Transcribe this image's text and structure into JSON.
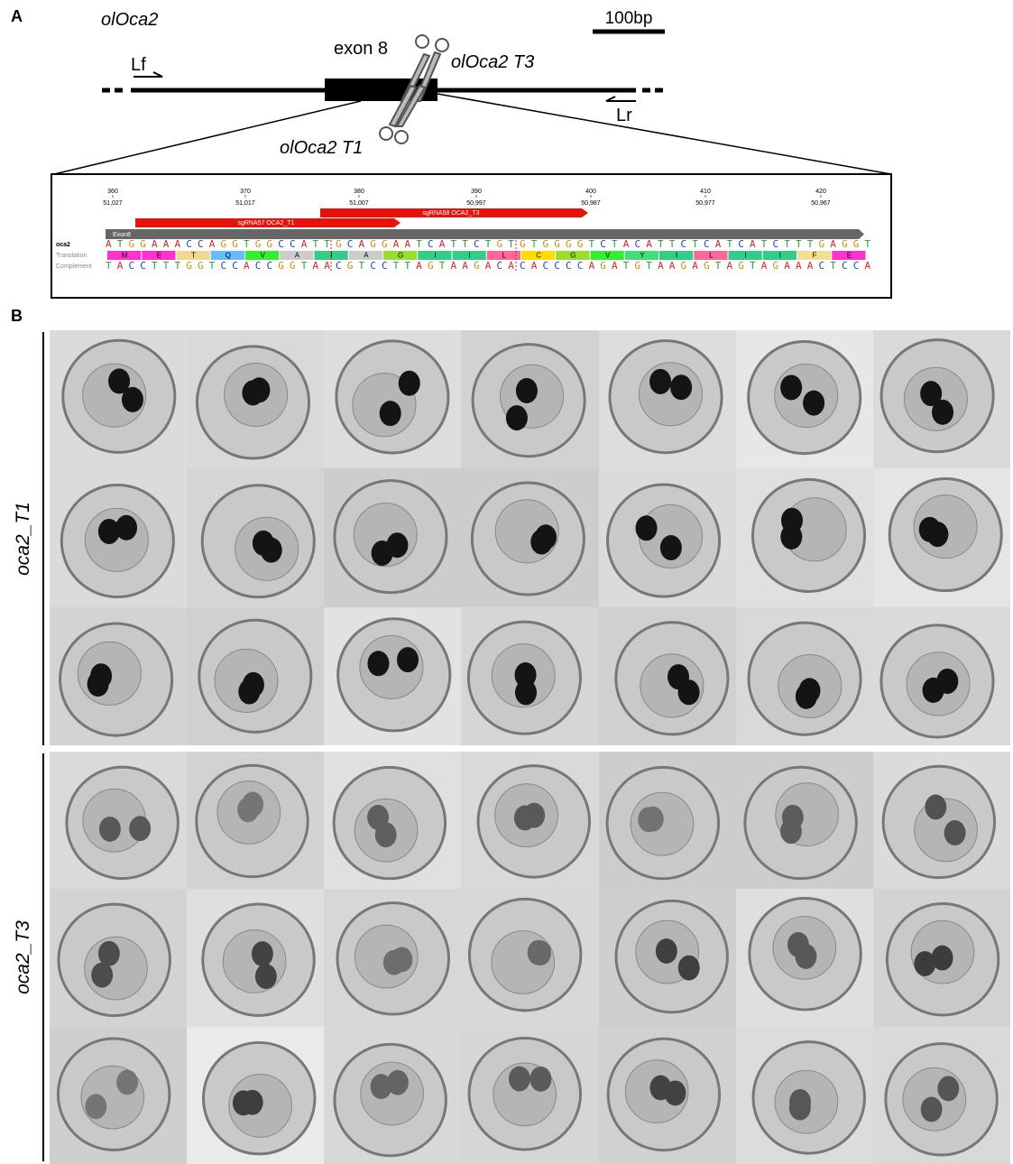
{
  "panel_a": {
    "label": "A",
    "gene": "olOca2",
    "scale": "100bp",
    "exon": "exon 8",
    "guide_t3": "olOca2 T3",
    "guide_t1": "olOca2 T1",
    "primer_f": "Lf",
    "primer_r": "Lr",
    "sequence_view": {
      "positions": [
        "360",
        "370",
        "380",
        "390",
        "400",
        "410",
        "420"
      ],
      "coordinates": [
        "51,027",
        "51,017",
        "51,007",
        "50,997",
        "50,987",
        "50,977",
        "50,967"
      ],
      "features": [
        "sgRNA58 OCA2_T3",
        "sgRNA57 OCA2_T1",
        "Exon8"
      ],
      "row_labels": [
        "oca2",
        "Translation",
        "Complement"
      ],
      "sequence": "ATGGAAACCAGGTGGCCATTGCAGGAATCATTCTGTGTGGGGTCTACATTCTCATCATCTTTGAGGT",
      "translation": [
        "M",
        "E",
        "T",
        "Q",
        "V",
        "A",
        "I",
        "A",
        "G",
        "I",
        "I",
        "L",
        "C",
        "G",
        "V",
        "Y",
        "I",
        "L",
        "I",
        "I",
        "F",
        "E"
      ],
      "complement": "TACCTTTGGTCCACCGGTAACGTCCTTAGTAAGACACACCCCAGATGTAAGAGTAGTAGAAACTCCA"
    }
  },
  "panel_b": {
    "label": "B",
    "groups": [
      "oca2_T1",
      "oca2_T3"
    ]
  }
}
